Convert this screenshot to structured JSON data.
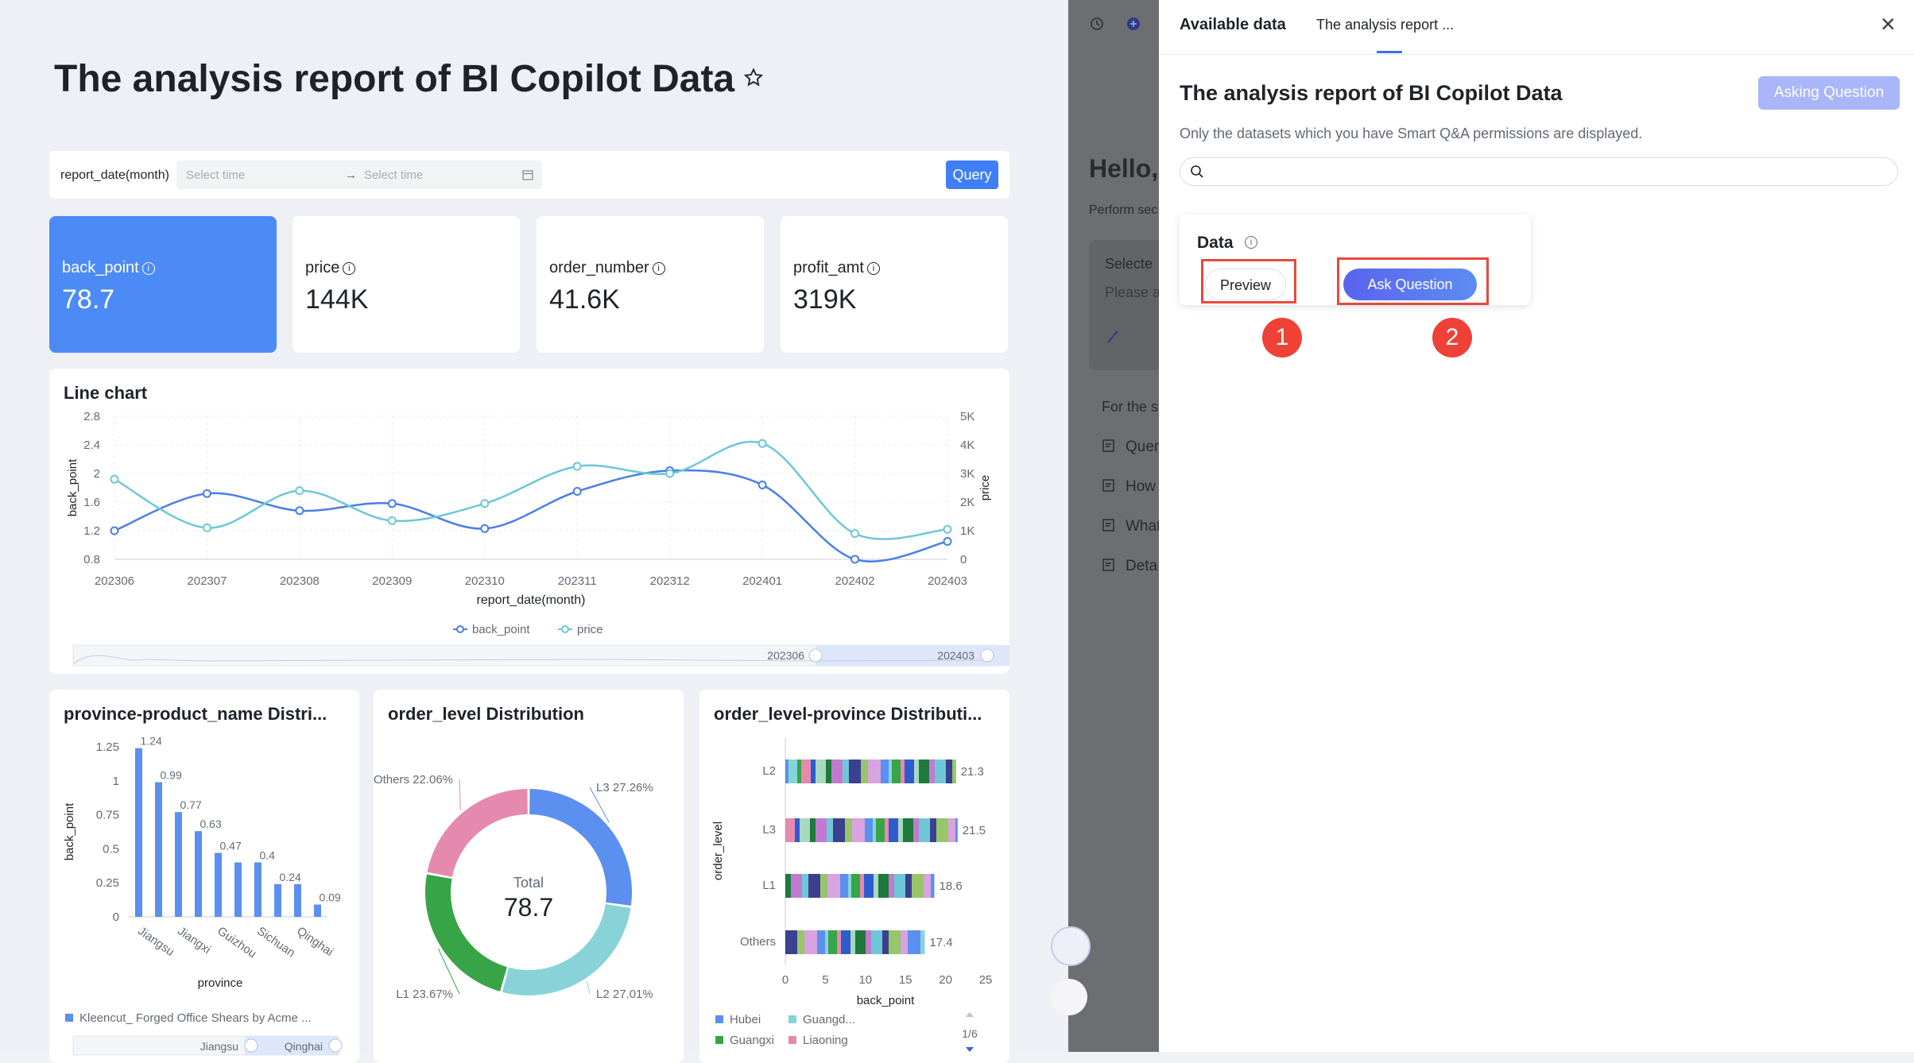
{
  "dashboard": {
    "title": "The analysis report of BI Copilot Data",
    "filter": {
      "label": "report_date(month)",
      "start_placeholder": "Select time",
      "end_placeholder": "Select time",
      "arrow": "→",
      "query_label": "Query"
    },
    "kpis": [
      {
        "label": "back_point",
        "value": "78.7",
        "active": true
      },
      {
        "label": "price",
        "value": "144K"
      },
      {
        "label": "order_number",
        "value": "41.6K"
      },
      {
        "label": "profit_amt",
        "value": "319K"
      }
    ],
    "info_glyph": "i",
    "icons": {
      "star": "star-icon",
      "calendar": "calendar-icon",
      "info": "info-icon"
    }
  },
  "chart_data": [
    {
      "type": "line",
      "title": "Line chart",
      "x": [
        "202306",
        "202307",
        "202308",
        "202309",
        "202310",
        "202311",
        "202312",
        "202401",
        "202402",
        "202403"
      ],
      "xlabel": "report_date(month)",
      "series": [
        {
          "name": "back_point",
          "axis": "left",
          "color": "#4a7ee8",
          "values": [
            1.2,
            1.72,
            1.48,
            1.58,
            1.23,
            1.75,
            2.04,
            1.84,
            0.8,
            1.05
          ]
        },
        {
          "name": "price",
          "axis": "right",
          "color": "#6cc8d6",
          "values": [
            2800,
            1100,
            2400,
            1350,
            1950,
            3250,
            3000,
            4050,
            900,
            1050
          ]
        }
      ],
      "ylabel_left": "back_point",
      "ylim_left": [
        0.8,
        2.8
      ],
      "yticks_left": [
        "2.8",
        "2.4",
        "2",
        "1.6",
        "1.2",
        "0.8"
      ],
      "ylabel_right": "price",
      "ylim_right": [
        0,
        5000
      ],
      "yticks_right": [
        "5K",
        "4K",
        "3K",
        "2K",
        "1K",
        "0"
      ],
      "legend": "bottom",
      "zoom": {
        "start": "202306",
        "end": "202403"
      }
    },
    {
      "type": "bar",
      "title": "province-product_name Distri...",
      "categories": [
        "Jiangsu",
        "",
        "Jiangxi",
        "",
        "Guizhou",
        "",
        "Sichuan",
        "",
        "Qinghai",
        ""
      ],
      "values": [
        1.24,
        0.99,
        0.77,
        0.63,
        0.47,
        0.4,
        0.4,
        0.24,
        0.24,
        0.09
      ],
      "value_labels": [
        "1.24",
        "0.99",
        "0.77",
        "0.63",
        "0.47",
        "",
        "0.4",
        "0.24",
        "",
        "0.09"
      ],
      "xlabel": "province",
      "ylabel": "back_point",
      "ylim": [
        0,
        1.25
      ],
      "yticks": [
        "1.25",
        "1",
        "0.75",
        "0.5",
        "0.25",
        "0"
      ],
      "legend": "Kleencut_ Forged Office Shears by Acme ...",
      "zoom": {
        "start": "Jiangsu",
        "end": "Qinghai"
      }
    },
    {
      "type": "pie",
      "title": "order_level Distribution",
      "slices": [
        {
          "label": "L3",
          "percent": "27.26%",
          "value": 27.26,
          "color": "#5b8ff0"
        },
        {
          "label": "L2",
          "percent": "27.01%",
          "value": 27.01,
          "color": "#88d3d8"
        },
        {
          "label": "L1",
          "percent": "23.67%",
          "value": 23.67,
          "color": "#36a447"
        },
        {
          "label": "Others",
          "percent": "22.06%",
          "value": 22.06,
          "color": "#e58aae"
        }
      ],
      "center_label": "Total",
      "center_value": "78.7"
    },
    {
      "type": "bar",
      "orientation": "horizontal",
      "title": "order_level-province Distributi...",
      "categories": [
        "L2",
        "L3",
        "L1",
        "Others"
      ],
      "values": [
        21.3,
        21.5,
        18.6,
        17.4
      ],
      "value_labels": [
        "21.3",
        "21.5",
        "18.6",
        "17.4"
      ],
      "xlabel": "back_point",
      "ylabel": "order_level",
      "xlim": [
        0,
        25
      ],
      "xticks": [
        "0",
        "5",
        "10",
        "15",
        "20",
        "25"
      ],
      "legend": [
        "Hubei",
        "Guangd...",
        "Guangxi",
        "Liaoning"
      ],
      "legend_colors": [
        "#5b8ff0",
        "#88d3d8",
        "#36a447",
        "#e58aae"
      ],
      "legend_page": "1/6"
    }
  ],
  "panel": {
    "tabs": [
      "Available data",
      "The analysis report ..."
    ],
    "close_icon": "×",
    "title": "The analysis report of BI Copilot Data",
    "asking_label": "Asking Question",
    "permission_note": "Only the datasets which you have Smart Q&A permissions are displayed.",
    "data_card": {
      "title": "Data",
      "preview_label": "Preview",
      "ask_label": "Ask Question"
    },
    "badges": [
      "1",
      "2"
    ]
  },
  "background": {
    "greeting": "Hello,",
    "perform": "Perform sec",
    "selected": "Selecte",
    "please": "Please a",
    "for_the": "For the s",
    "items": [
      "Quer",
      "How",
      "What",
      "Deta"
    ]
  }
}
